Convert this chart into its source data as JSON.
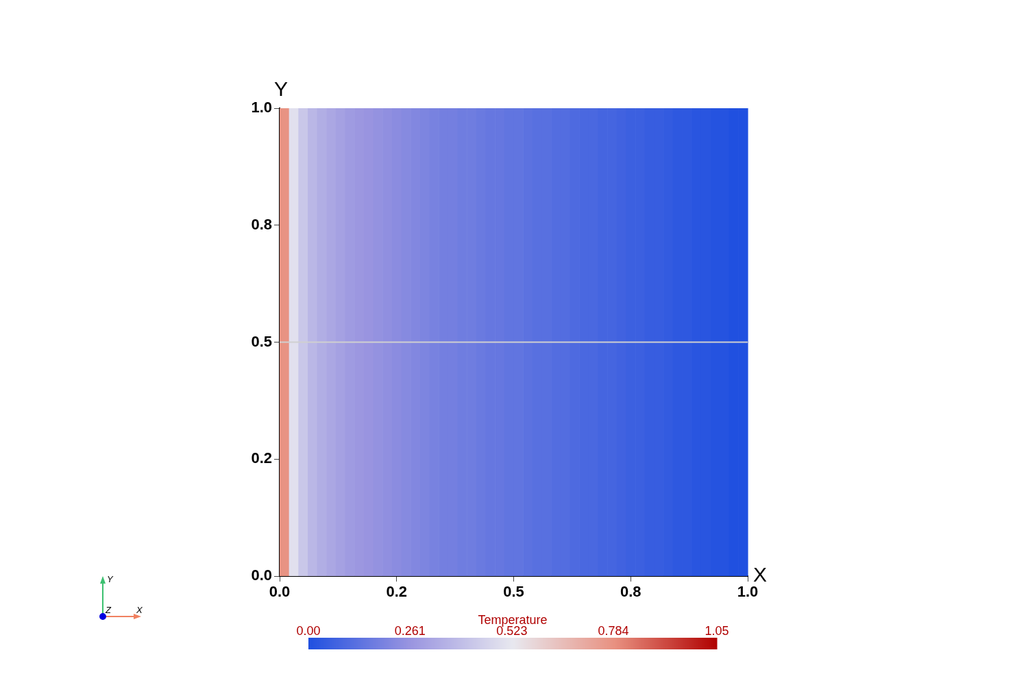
{
  "chart_data": {
    "type": "heatmap",
    "xlabel": "X",
    "ylabel": "Y",
    "clabel": "Temperature",
    "annotations": [
      "Z"
    ],
    "x": [
      0.01,
      0.03,
      0.05,
      0.07,
      0.09,
      0.11,
      0.13,
      0.15,
      0.17,
      0.19,
      0.21,
      0.23,
      0.25,
      0.27,
      0.29,
      0.31,
      0.33,
      0.35,
      0.37,
      0.39,
      0.41,
      0.43,
      0.45,
      0.47,
      0.49,
      0.51,
      0.53,
      0.55,
      0.57,
      0.59,
      0.61,
      0.63,
      0.65,
      0.67,
      0.69,
      0.71,
      0.73,
      0.75,
      0.77,
      0.79,
      0.81,
      0.83,
      0.85,
      0.87,
      0.89,
      0.91,
      0.93,
      0.95,
      0.97,
      0.99
    ],
    "cells": [
      [
        0.78,
        0.5,
        0.42,
        0.37,
        0.34,
        0.32,
        0.3,
        0.28,
        0.27,
        0.26,
        0.25,
        0.24,
        0.23,
        0.22,
        0.21,
        0.2,
        0.19,
        0.18,
        0.18,
        0.17,
        0.17,
        0.16,
        0.15,
        0.15,
        0.14,
        0.14,
        0.13,
        0.12,
        0.12,
        0.11,
        0.11,
        0.1,
        0.09,
        0.09,
        0.08,
        0.08,
        0.07,
        0.06,
        0.06,
        0.05,
        0.05,
        0.04,
        0.03,
        0.03,
        0.02,
        0.02,
        0.01,
        0.01,
        0.0,
        0.0
      ]
    ],
    "xlim": [
      0,
      1
    ],
    "ylim": [
      0,
      1
    ],
    "xticks": [
      {
        "value": 0,
        "label": "0.0"
      },
      {
        "value": 0.25,
        "label": "0.2"
      },
      {
        "value": 0.5,
        "label": "0.5"
      },
      {
        "value": 0.75,
        "label": "0.8"
      },
      {
        "value": 1,
        "label": "1.0"
      }
    ],
    "yticks": [
      {
        "value": 0,
        "label": "0.0"
      },
      {
        "value": 0.25,
        "label": "0.2"
      },
      {
        "value": 0.5,
        "label": "0.5"
      },
      {
        "value": 0.75,
        "label": "0.8"
      },
      {
        "value": 1,
        "label": "1.0"
      }
    ],
    "clim": [
      0,
      1.05
    ],
    "cticks": [
      {
        "value": 0,
        "label": "0.00"
      },
      0.261,
      0.523,
      0.784,
      1.05
    ],
    "ref_lines": [
      {
        "axis": "y",
        "value": 0.5,
        "color": "#d0d0d0"
      }
    ],
    "grid": false
  }
}
